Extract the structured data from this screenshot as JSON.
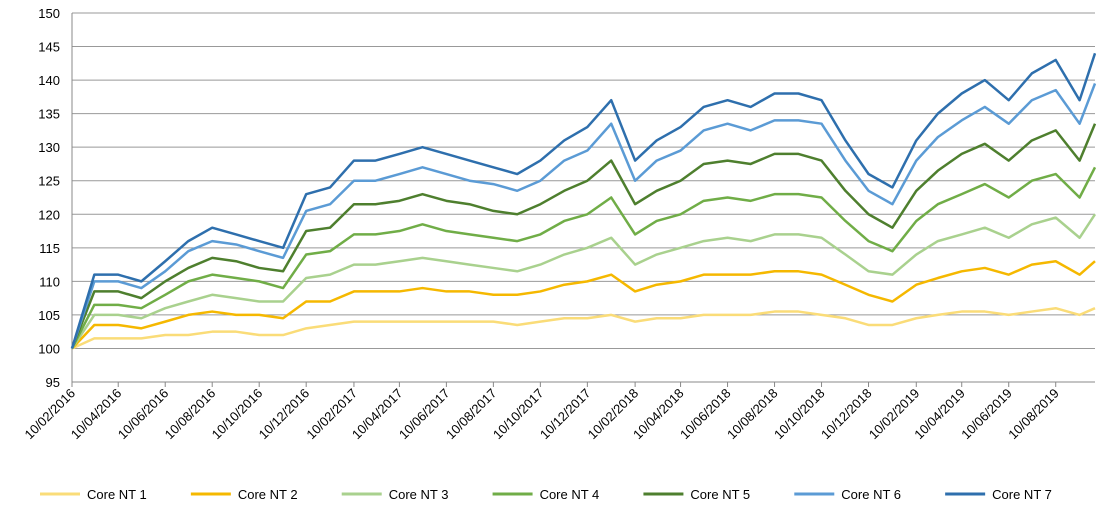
{
  "chart_data": {
    "type": "line",
    "x": [
      "10/02/2016",
      "10/03/2016",
      "10/04/2016",
      "10/05/2016",
      "10/06/2016",
      "10/07/2016",
      "10/08/2016",
      "10/09/2016",
      "10/10/2016",
      "10/11/2016",
      "10/12/2016",
      "10/01/2017",
      "10/02/2017",
      "10/03/2017",
      "10/04/2017",
      "10/05/2017",
      "10/06/2017",
      "10/07/2017",
      "10/08/2017",
      "10/09/2017",
      "10/10/2017",
      "10/11/2017",
      "10/12/2017",
      "10/01/2018",
      "10/02/2018",
      "10/03/2018",
      "10/04/2018",
      "10/05/2018",
      "10/06/2018",
      "10/07/2018",
      "10/08/2018",
      "10/09/2018",
      "10/10/2018",
      "10/11/2018",
      "10/12/2018",
      "10/01/2019",
      "10/02/2019",
      "10/03/2019",
      "10/04/2019",
      "10/05/2019",
      "10/06/2019",
      "10/07/2019",
      "10/08/2019",
      "10/09/2019",
      "30/09/2019"
    ],
    "xlim": [
      "10/02/2016",
      "30/09/2019"
    ],
    "xticks": [
      "10/02/2016",
      "10/04/2016",
      "10/06/2016",
      "10/08/2016",
      "10/10/2016",
      "10/12/2016",
      "10/02/2017",
      "10/04/2017",
      "10/06/2017",
      "10/08/2017",
      "10/10/2017",
      "10/12/2017",
      "10/02/2018",
      "10/04/2018",
      "10/06/2018",
      "10/08/2018",
      "10/10/2018",
      "10/12/2018",
      "10/02/2019",
      "10/04/2019",
      "10/06/2019",
      "10/08/2019"
    ],
    "ylim": [
      95,
      150
    ],
    "yticks": [
      95,
      100,
      105,
      110,
      115,
      120,
      125,
      130,
      135,
      140,
      145,
      150
    ],
    "grid": true,
    "legend": "bottom",
    "series": [
      {
        "name": "Core NT 1",
        "color": "#fadc78",
        "values": [
          100,
          101.5,
          101.5,
          101.5,
          102,
          102,
          102.5,
          102.5,
          102,
          102,
          103,
          103.5,
          104,
          104,
          104,
          104,
          104,
          104,
          104,
          103.5,
          104,
          104.5,
          104.5,
          105,
          104,
          104.5,
          104.5,
          105,
          105,
          105,
          105.5,
          105.5,
          105,
          104.5,
          103.5,
          103.5,
          104.5,
          105,
          105.5,
          105.5,
          105,
          105.5,
          106,
          105,
          106
        ]
      },
      {
        "name": "Core NT 2",
        "color": "#f5b800",
        "values": [
          100,
          103.5,
          103.5,
          103,
          104,
          105,
          105.5,
          105,
          105,
          104.5,
          107,
          107,
          108.5,
          108.5,
          108.5,
          109,
          108.5,
          108.5,
          108,
          108,
          108.5,
          109.5,
          110,
          111,
          108.5,
          109.5,
          110,
          111,
          111,
          111,
          111.5,
          111.5,
          111,
          109.5,
          108,
          107,
          109.5,
          110.5,
          111.5,
          112,
          111,
          112.5,
          113,
          111,
          113
        ]
      },
      {
        "name": "Core NT 3",
        "color": "#a9d18e",
        "values": [
          100,
          105,
          105,
          104.5,
          106,
          107,
          108,
          107.5,
          107,
          107,
          110.5,
          111,
          112.5,
          112.5,
          113,
          113.5,
          113,
          112.5,
          112,
          111.5,
          112.5,
          114,
          115,
          116.5,
          112.5,
          114,
          115,
          116,
          116.5,
          116,
          117,
          117,
          116.5,
          114,
          111.5,
          111,
          114,
          116,
          117,
          118,
          116.5,
          118.5,
          119.5,
          116.5,
          120
        ]
      },
      {
        "name": "Core NT 4",
        "color": "#70ad47",
        "values": [
          100,
          106.5,
          106.5,
          106,
          108,
          110,
          111,
          110.5,
          110,
          109,
          114,
          114.5,
          117,
          117,
          117.5,
          118.5,
          117.5,
          117,
          116.5,
          116,
          117,
          119,
          120,
          122.5,
          117,
          119,
          120,
          122,
          122.5,
          122,
          123,
          123,
          122.5,
          119,
          116,
          114.5,
          119,
          121.5,
          123,
          124.5,
          122.5,
          125,
          126,
          122.5,
          127
        ]
      },
      {
        "name": "Core NT 5",
        "color": "#4e7f2e",
        "values": [
          100,
          108.5,
          108.5,
          107.5,
          110,
          112,
          113.5,
          113,
          112,
          111.5,
          117.5,
          118,
          121.5,
          121.5,
          122,
          123,
          122,
          121.5,
          120.5,
          120,
          121.5,
          123.5,
          125,
          128,
          121.5,
          123.5,
          125,
          127.5,
          128,
          127.5,
          129,
          129,
          128,
          123.5,
          120,
          118,
          123.5,
          126.5,
          129,
          130.5,
          128,
          131,
          132.5,
          128,
          133.5
        ]
      },
      {
        "name": "Core NT 6",
        "color": "#5b9bd5",
        "values": [
          100,
          110,
          110,
          109,
          111.5,
          114.5,
          116,
          115.5,
          114.5,
          113.5,
          120.5,
          121.5,
          125,
          125,
          126,
          127,
          126,
          125,
          124.5,
          123.5,
          125,
          128,
          129.5,
          133.5,
          125,
          128,
          129.5,
          132.5,
          133.5,
          132.5,
          134,
          134,
          133.5,
          128,
          123.5,
          121.5,
          128,
          131.5,
          134,
          136,
          133.5,
          137,
          138.5,
          133.5,
          139.5
        ]
      },
      {
        "name": "Core NT 7",
        "color": "#2e6fad",
        "values": [
          100,
          111,
          111,
          110,
          113,
          116,
          118,
          117,
          116,
          115,
          123,
          124,
          128,
          128,
          129,
          130,
          129,
          128,
          127,
          126,
          128,
          131,
          133,
          137,
          128,
          131,
          133,
          136,
          137,
          136,
          138,
          138,
          137,
          131,
          126,
          124,
          131,
          135,
          138,
          140,
          137,
          141,
          143,
          137,
          144
        ]
      }
    ]
  }
}
